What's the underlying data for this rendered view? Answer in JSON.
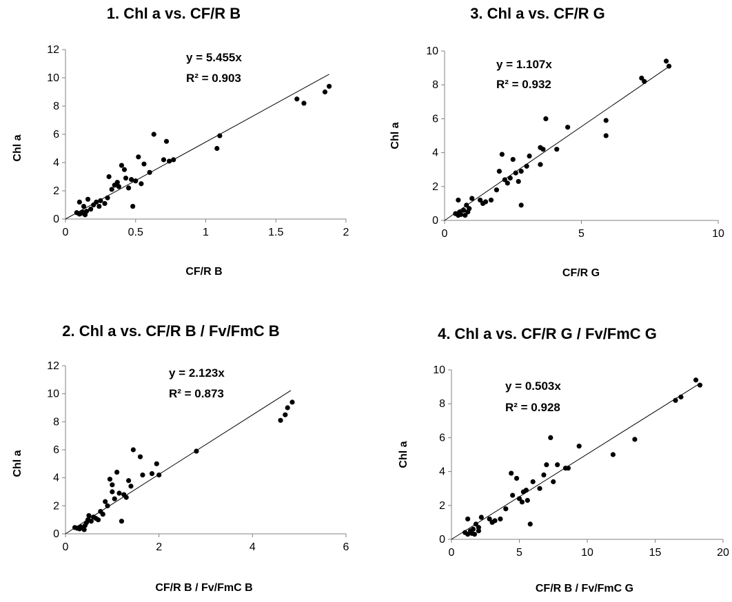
{
  "chart_data": [
    {
      "type": "scatter",
      "title": "1. Chl a vs. CF/R B",
      "xlabel": "CF/R B",
      "ylabel": "Chl a",
      "xlim": [
        0,
        2
      ],
      "ylim": [
        0,
        12
      ],
      "xticks": [
        "0",
        "0.5",
        "1",
        "1.5",
        "2"
      ],
      "yticks": [
        "0",
        "2",
        "4",
        "6",
        "8",
        "10",
        "12"
      ],
      "equation": "y = 5.455x",
      "r2_label": "R² = 0.903",
      "fit": {
        "slope": 5.455,
        "x_end": 1.88
      },
      "marker_color": "#000000",
      "points": [
        [
          0.08,
          0.45
        ],
        [
          0.1,
          0.35
        ],
        [
          0.11,
          0.4
        ],
        [
          0.12,
          0.5
        ],
        [
          0.13,
          0.45
        ],
        [
          0.14,
          0.3
        ],
        [
          0.15,
          0.55
        ],
        [
          0.1,
          1.2
        ],
        [
          0.13,
          0.9
        ],
        [
          0.16,
          1.4
        ],
        [
          0.18,
          0.7
        ],
        [
          0.2,
          1.0
        ],
        [
          0.22,
          1.2
        ],
        [
          0.24,
          0.9
        ],
        [
          0.25,
          1.3
        ],
        [
          0.28,
          1.1
        ],
        [
          0.3,
          1.5
        ],
        [
          0.31,
          3.0
        ],
        [
          0.33,
          2.1
        ],
        [
          0.35,
          2.4
        ],
        [
          0.37,
          2.6
        ],
        [
          0.38,
          2.3
        ],
        [
          0.4,
          3.8
        ],
        [
          0.42,
          3.5
        ],
        [
          0.43,
          2.9
        ],
        [
          0.45,
          2.2
        ],
        [
          0.47,
          2.8
        ],
        [
          0.48,
          0.9
        ],
        [
          0.5,
          2.7
        ],
        [
          0.52,
          4.4
        ],
        [
          0.54,
          2.5
        ],
        [
          0.56,
          3.9
        ],
        [
          0.6,
          3.3
        ],
        [
          0.63,
          6.0
        ],
        [
          0.7,
          4.2
        ],
        [
          0.72,
          5.5
        ],
        [
          0.74,
          4.1
        ],
        [
          0.77,
          4.2
        ],
        [
          1.08,
          5.0
        ],
        [
          1.1,
          5.9
        ],
        [
          1.65,
          8.5
        ],
        [
          1.7,
          8.2
        ],
        [
          1.85,
          9.0
        ],
        [
          1.88,
          9.4
        ]
      ]
    },
    {
      "type": "scatter",
      "title": "3. Chl a vs. CF/R G",
      "xlabel": "CF/R G",
      "ylabel": "Chl a",
      "xlim": [
        0,
        10
      ],
      "ylim": [
        0,
        10
      ],
      "xticks": [
        "0",
        "5",
        "10"
      ],
      "yticks": [
        "0",
        "2",
        "4",
        "6",
        "8",
        "10"
      ],
      "equation": "y = 1.107x",
      "r2_label": "R² = 0.932",
      "fit": {
        "slope": 1.107,
        "x_end": 8.2
      },
      "marker_color": "#000000",
      "points": [
        [
          0.4,
          0.4
        ],
        [
          0.5,
          0.3
        ],
        [
          0.55,
          0.5
        ],
        [
          0.6,
          0.35
        ],
        [
          0.7,
          0.6
        ],
        [
          0.75,
          0.3
        ],
        [
          0.8,
          0.9
        ],
        [
          0.85,
          0.5
        ],
        [
          0.5,
          1.2
        ],
        [
          0.9,
          0.7
        ],
        [
          1.0,
          1.3
        ],
        [
          1.3,
          1.2
        ],
        [
          1.4,
          1.0
        ],
        [
          1.5,
          1.1
        ],
        [
          1.7,
          1.2
        ],
        [
          1.9,
          1.8
        ],
        [
          2.0,
          2.9
        ],
        [
          2.1,
          3.9
        ],
        [
          2.2,
          2.4
        ],
        [
          2.3,
          2.2
        ],
        [
          2.4,
          2.5
        ],
        [
          2.5,
          3.6
        ],
        [
          2.6,
          2.8
        ],
        [
          2.7,
          2.3
        ],
        [
          2.8,
          2.9
        ],
        [
          2.8,
          0.9
        ],
        [
          3.0,
          3.2
        ],
        [
          3.1,
          3.8
        ],
        [
          3.5,
          4.3
        ],
        [
          3.6,
          4.2
        ],
        [
          3.5,
          3.3
        ],
        [
          3.7,
          6.0
        ],
        [
          4.1,
          4.2
        ],
        [
          4.5,
          5.5
        ],
        [
          5.9,
          5.0
        ],
        [
          5.9,
          5.9
        ],
        [
          7.2,
          8.4
        ],
        [
          7.3,
          8.2
        ],
        [
          8.1,
          9.4
        ],
        [
          8.2,
          9.1
        ]
      ]
    },
    {
      "type": "scatter",
      "title": "2. Chl a vs. CF/R B / Fv/FmC B",
      "xlabel": "CF/R B  / Fv/FmC B",
      "ylabel": "Chl a",
      "xlim": [
        0,
        6
      ],
      "ylim": [
        0,
        12
      ],
      "xticks": [
        "0",
        "2",
        "4",
        "6"
      ],
      "yticks": [
        "0",
        "2",
        "4",
        "6",
        "8",
        "10",
        "12"
      ],
      "equation": "y = 2.123x",
      "r2_label": "R² = 0.873",
      "fit": {
        "slope": 2.123,
        "x_end": 4.82
      },
      "marker_color": "#000000",
      "points": [
        [
          0.2,
          0.45
        ],
        [
          0.25,
          0.4
        ],
        [
          0.3,
          0.35
        ],
        [
          0.32,
          0.5
        ],
        [
          0.35,
          0.45
        ],
        [
          0.4,
          0.3
        ],
        [
          0.42,
          0.6
        ],
        [
          0.45,
          0.8
        ],
        [
          0.48,
          1.0
        ],
        [
          0.5,
          1.3
        ],
        [
          0.55,
          0.9
        ],
        [
          0.6,
          1.2
        ],
        [
          0.65,
          1.1
        ],
        [
          0.7,
          1.0
        ],
        [
          0.75,
          1.6
        ],
        [
          0.8,
          1.4
        ],
        [
          0.85,
          2.3
        ],
        [
          0.9,
          2.0
        ],
        [
          0.95,
          3.9
        ],
        [
          1.0,
          3.5
        ],
        [
          1.0,
          3.0
        ],
        [
          1.05,
          2.5
        ],
        [
          1.1,
          4.4
        ],
        [
          1.15,
          2.9
        ],
        [
          1.2,
          0.9
        ],
        [
          1.25,
          2.8
        ],
        [
          1.3,
          2.6
        ],
        [
          1.35,
          3.8
        ],
        [
          1.4,
          3.4
        ],
        [
          1.45,
          6.0
        ],
        [
          1.6,
          5.5
        ],
        [
          1.65,
          4.2
        ],
        [
          1.85,
          4.3
        ],
        [
          1.95,
          5.0
        ],
        [
          2.0,
          4.2
        ],
        [
          2.8,
          5.9
        ],
        [
          4.6,
          8.1
        ],
        [
          4.7,
          8.5
        ],
        [
          4.75,
          9.0
        ],
        [
          4.85,
          9.4
        ]
      ]
    },
    {
      "type": "scatter",
      "title": "4. Chl a vs. CF/R G / Fv/FmC G",
      "xlabel": "CF/R B  / Fv/FmC G",
      "ylabel": "Chl a",
      "xlim": [
        0,
        20
      ],
      "ylim": [
        0,
        10
      ],
      "xticks": [
        "0",
        "5",
        "10",
        "15",
        "20"
      ],
      "yticks": [
        "0",
        "2",
        "4",
        "6",
        "8",
        "10"
      ],
      "equation": "y = 0.503x",
      "r2_label": "R² = 0.928",
      "fit": {
        "slope": 0.503,
        "x_end": 18.3
      },
      "marker_color": "#000000",
      "points": [
        [
          1.0,
          0.4
        ],
        [
          1.2,
          0.3
        ],
        [
          1.4,
          0.5
        ],
        [
          1.5,
          0.35
        ],
        [
          1.6,
          0.6
        ],
        [
          1.7,
          0.3
        ],
        [
          1.8,
          0.9
        ],
        [
          2.0,
          0.5
        ],
        [
          1.2,
          1.2
        ],
        [
          2.0,
          0.7
        ],
        [
          2.2,
          1.3
        ],
        [
          2.8,
          1.2
        ],
        [
          3.0,
          1.0
        ],
        [
          3.2,
          1.1
        ],
        [
          3.6,
          1.2
        ],
        [
          4.0,
          1.8
        ],
        [
          4.4,
          3.9
        ],
        [
          4.5,
          2.6
        ],
        [
          4.8,
          3.6
        ],
        [
          5.0,
          2.4
        ],
        [
          5.2,
          2.2
        ],
        [
          5.3,
          2.8
        ],
        [
          5.5,
          2.9
        ],
        [
          5.6,
          2.3
        ],
        [
          5.8,
          0.9
        ],
        [
          6.0,
          3.4
        ],
        [
          6.5,
          3.0
        ],
        [
          6.8,
          3.8
        ],
        [
          7.0,
          4.4
        ],
        [
          7.3,
          6.0
        ],
        [
          7.5,
          3.4
        ],
        [
          7.8,
          4.4
        ],
        [
          8.4,
          4.2
        ],
        [
          8.6,
          4.2
        ],
        [
          9.4,
          5.5
        ],
        [
          11.9,
          5.0
        ],
        [
          13.5,
          5.9
        ],
        [
          16.5,
          8.2
        ],
        [
          16.9,
          8.4
        ],
        [
          18.0,
          9.4
        ],
        [
          18.3,
          9.1
        ]
      ]
    }
  ]
}
